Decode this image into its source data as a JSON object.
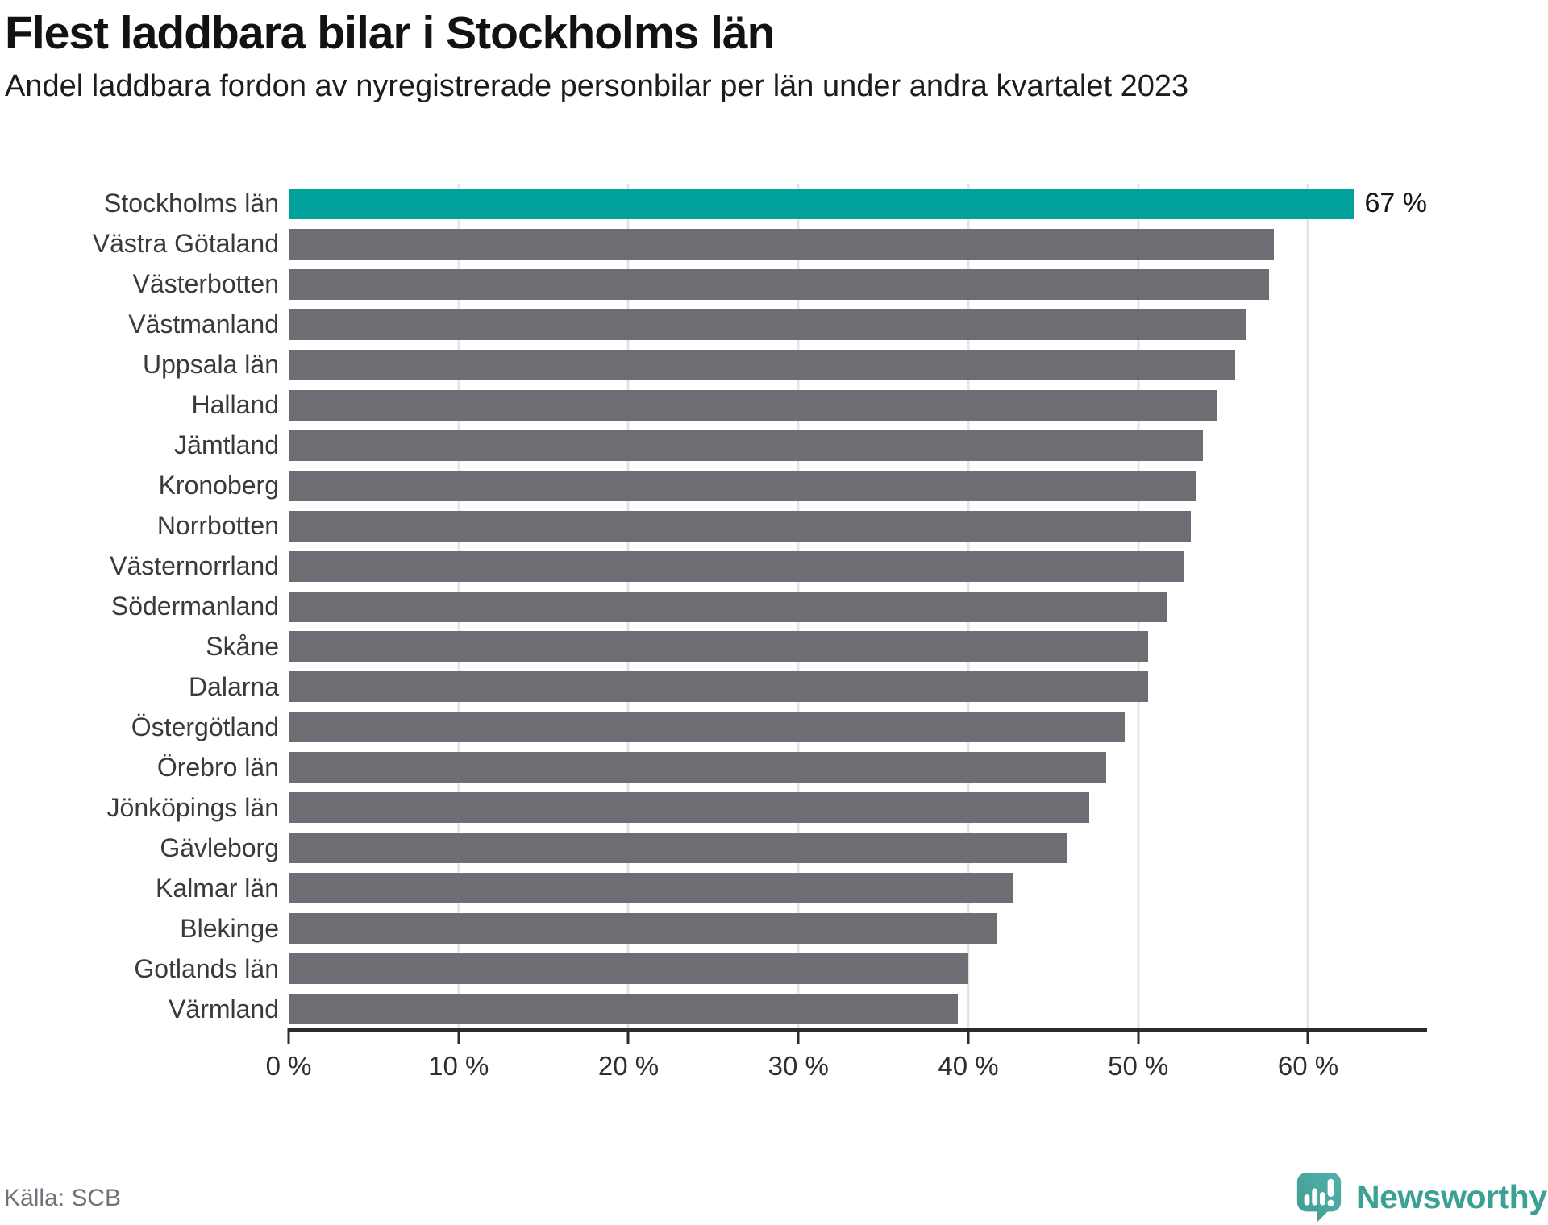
{
  "header": {
    "title": "Flest laddbara bilar i Stockholms län",
    "subtitle": "Andel laddbara fordon av nyregistrerade personbilar per län under andra kvartalet 2023"
  },
  "chart_data": {
    "type": "bar",
    "orientation": "horizontal",
    "title": "Flest laddbara bilar i Stockholms län",
    "subtitle": "Andel laddbara fordon av nyregistrerade personbilar per län under andra kvartalet 2023",
    "categories": [
      "Stockholms län",
      "Västra Götaland",
      "Västerbotten",
      "Västmanland",
      "Uppsala län",
      "Halland",
      "Jämtland",
      "Kronoberg",
      "Norrbotten",
      "Västernorrland",
      "Södermanland",
      "Skåne",
      "Dalarna",
      "Östergötland",
      "Örebro län",
      "Jönköpings län",
      "Gävleborg",
      "Kalmar län",
      "Blekinge",
      "Gotlands län",
      "Värmland"
    ],
    "values": [
      67,
      58.0,
      57.7,
      56.3,
      55.7,
      54.6,
      53.8,
      53.4,
      53.1,
      52.7,
      51.7,
      50.6,
      50.6,
      49.2,
      48.1,
      47.1,
      45.8,
      42.6,
      41.7,
      40.0,
      39.4
    ],
    "unit": "%",
    "highlight_index": 0,
    "value_label_text": "67 %",
    "xlim": [
      0,
      67
    ],
    "tick_values": [
      0,
      10,
      20,
      30,
      40,
      50,
      60
    ],
    "tick_labels": [
      "0 %",
      "10 %",
      "20 %",
      "30 %",
      "40 %",
      "50 %",
      "60 %"
    ],
    "grid": "vertical-only",
    "legend": "none",
    "colors": {
      "highlight": "#00a29b",
      "bar": "#6d6d73",
      "grid": "#e4e4e6",
      "axis": "#2b2b2b"
    }
  },
  "footer": {
    "source": "Källa: SCB",
    "brand": "Newsworthy",
    "brand_color": "#3ba195",
    "logo_color_light": "#52b0a8",
    "logo_color_dark": "#3f9c93"
  }
}
